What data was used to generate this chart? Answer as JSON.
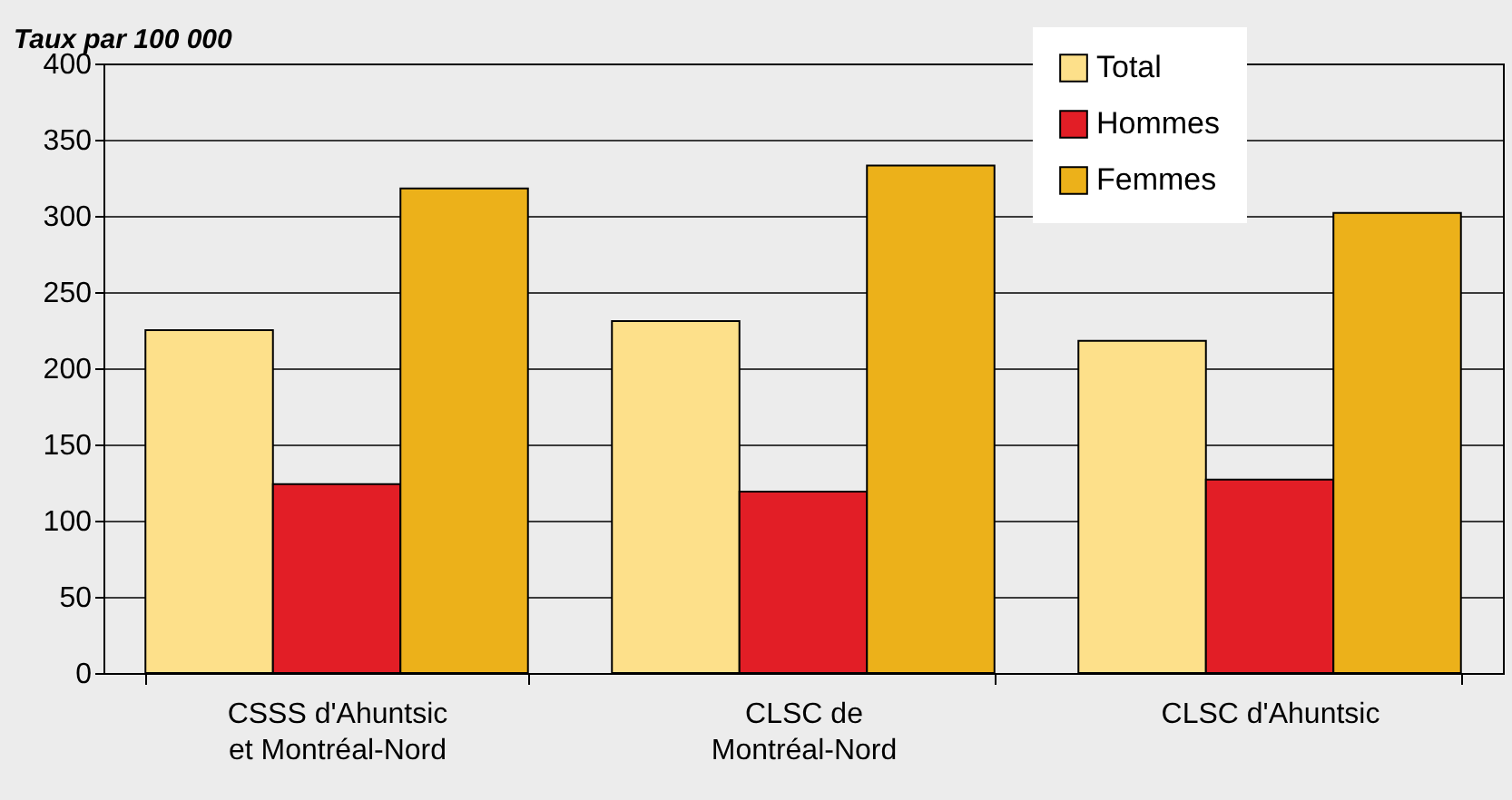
{
  "chart_data": {
    "type": "bar",
    "ylabel": "Taux par 100 000",
    "categories": [
      "CSSS d'Ahuntsic\net Montréal-Nord",
      "CLSC de\nMontréal-Nord",
      "CLSC d'Ahuntsic"
    ],
    "series": [
      {
        "name": "Total",
        "color": "#fde08a",
        "values": [
          225,
          231,
          218
        ]
      },
      {
        "name": "Hommes",
        "color": "#e21e26",
        "values": [
          124,
          119,
          127
        ]
      },
      {
        "name": "Femmes",
        "color": "#ecb11a",
        "values": [
          318,
          333,
          302
        ]
      }
    ],
    "ylim": [
      0,
      400
    ],
    "yticks": [
      0,
      50,
      100,
      150,
      200,
      250,
      300,
      350,
      400
    ],
    "grid": "y",
    "legend": "top right"
  }
}
